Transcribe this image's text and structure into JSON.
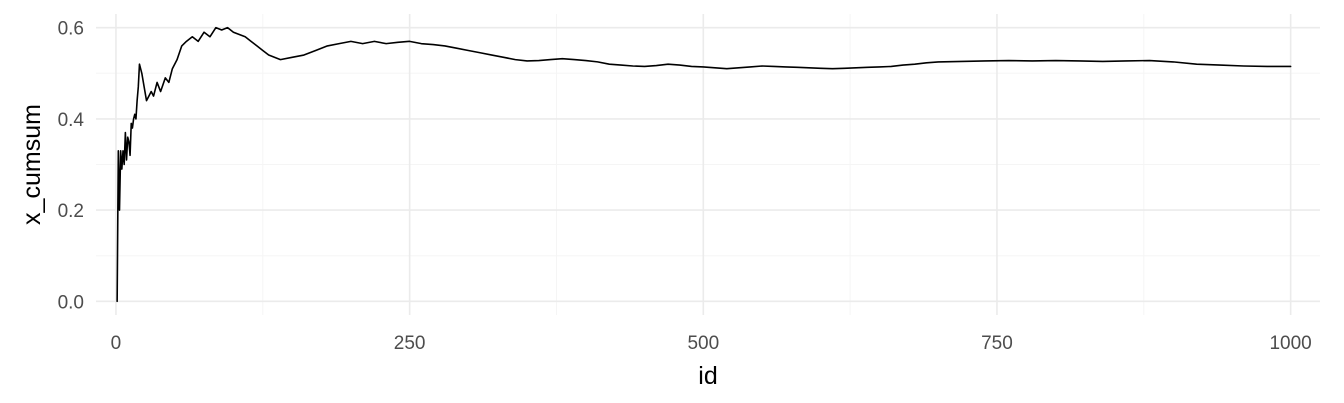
{
  "chart_data": {
    "type": "line",
    "title": "",
    "xlabel": "id",
    "ylabel": "x_cumsum",
    "xlim": [
      -17,
      1025
    ],
    "ylim": [
      -0.03,
      0.63
    ],
    "x_ticks": [
      0,
      250,
      500,
      750,
      1000
    ],
    "x_tick_labels": [
      "0",
      "250",
      "500",
      "750",
      "1000"
    ],
    "y_ticks": [
      0.0,
      0.2,
      0.4,
      0.6
    ],
    "y_tick_labels": [
      "0.0",
      "0.2",
      "0.4",
      "0.6"
    ],
    "grid": true,
    "line_color": "#000000",
    "series": [
      {
        "x": [
          1,
          2,
          3,
          4,
          5,
          6,
          7,
          8,
          9,
          10,
          11,
          12,
          13,
          14,
          15,
          16,
          17,
          18,
          19,
          20,
          22,
          24,
          26,
          28,
          30,
          32,
          35,
          38,
          42,
          45,
          48,
          52,
          56,
          60,
          65,
          70,
          75,
          80,
          85,
          90,
          95,
          100,
          105,
          110,
          115,
          120,
          125,
          130,
          140,
          150,
          160,
          170,
          180,
          190,
          200,
          210,
          220,
          230,
          240,
          250,
          260,
          270,
          280,
          290,
          300,
          310,
          320,
          330,
          340,
          350,
          360,
          370,
          380,
          390,
          400,
          410,
          420,
          430,
          440,
          450,
          460,
          470,
          480,
          490,
          500,
          510,
          520,
          530,
          540,
          550,
          560,
          570,
          580,
          590,
          600,
          610,
          620,
          630,
          640,
          650,
          660,
          670,
          680,
          690,
          700,
          720,
          740,
          760,
          780,
          800,
          820,
          840,
          860,
          880,
          900,
          920,
          940,
          960,
          980,
          1000
        ],
        "y": [
          0.0,
          0.33,
          0.2,
          0.33,
          0.29,
          0.33,
          0.3,
          0.37,
          0.31,
          0.36,
          0.35,
          0.32,
          0.39,
          0.38,
          0.4,
          0.41,
          0.4,
          0.44,
          0.47,
          0.52,
          0.5,
          0.47,
          0.44,
          0.45,
          0.46,
          0.45,
          0.48,
          0.46,
          0.49,
          0.48,
          0.51,
          0.53,
          0.56,
          0.57,
          0.58,
          0.57,
          0.59,
          0.58,
          0.6,
          0.595,
          0.6,
          0.59,
          0.585,
          0.58,
          0.57,
          0.56,
          0.55,
          0.54,
          0.53,
          0.535,
          0.54,
          0.55,
          0.56,
          0.565,
          0.57,
          0.565,
          0.57,
          0.565,
          0.568,
          0.57,
          0.565,
          0.563,
          0.56,
          0.555,
          0.55,
          0.545,
          0.54,
          0.535,
          0.53,
          0.527,
          0.528,
          0.53,
          0.532,
          0.53,
          0.528,
          0.525,
          0.52,
          0.518,
          0.516,
          0.515,
          0.517,
          0.52,
          0.518,
          0.515,
          0.514,
          0.512,
          0.51,
          0.512,
          0.514,
          0.516,
          0.515,
          0.514,
          0.513,
          0.512,
          0.511,
          0.51,
          0.511,
          0.512,
          0.513,
          0.514,
          0.515,
          0.518,
          0.52,
          0.523,
          0.525,
          0.526,
          0.527,
          0.528,
          0.527,
          0.528,
          0.527,
          0.526,
          0.527,
          0.528,
          0.525,
          0.52,
          0.518,
          0.516,
          0.515,
          0.515
        ]
      }
    ]
  }
}
